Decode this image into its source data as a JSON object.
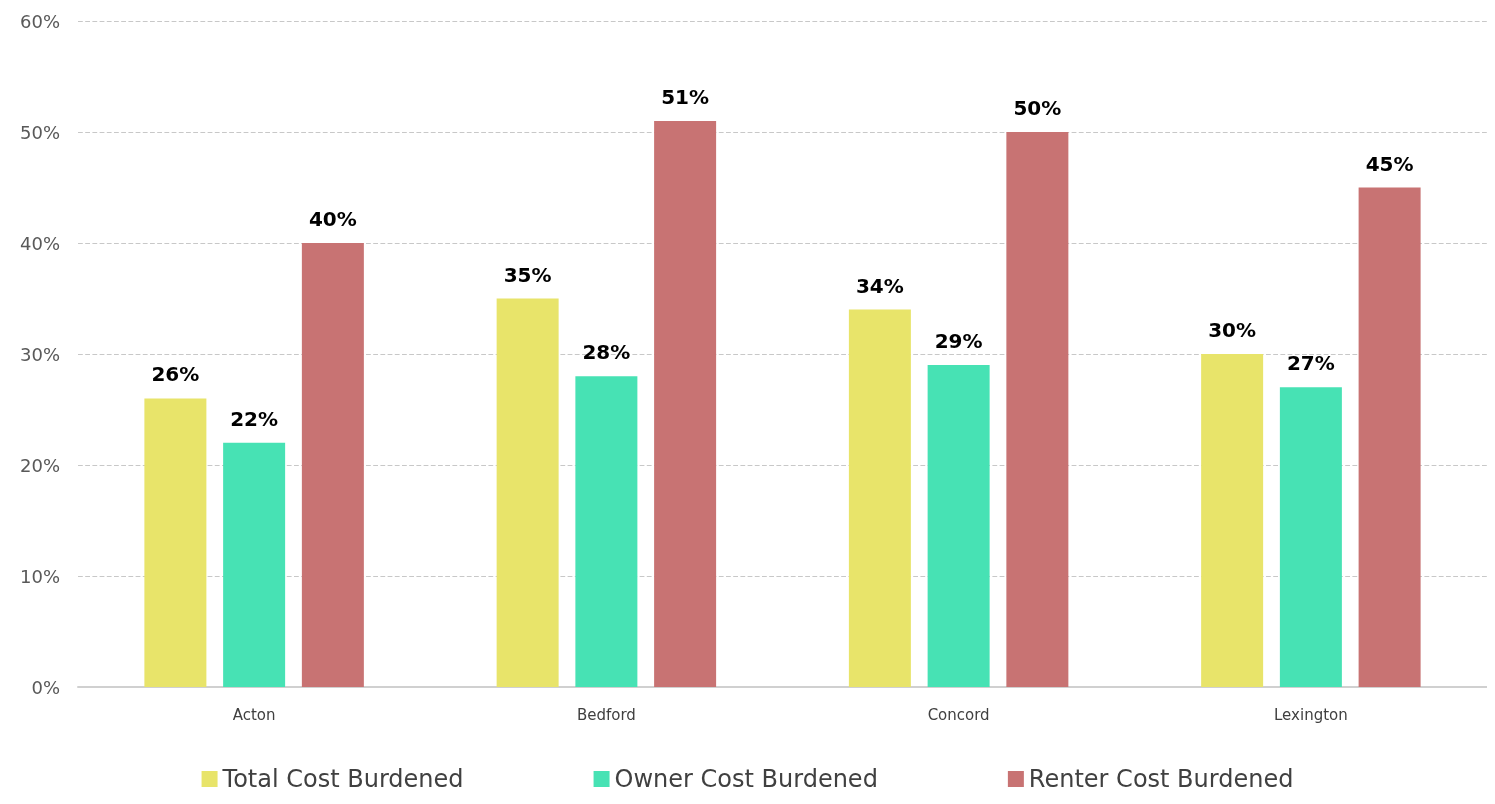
{
  "chart_data": {
    "type": "bar",
    "categories": [
      "Acton",
      "Bedford",
      "Concord",
      "Lexington"
    ],
    "series": [
      {
        "name": "Total Cost Burdened",
        "color": "#e8e46a",
        "values": [
          26,
          35,
          34,
          30
        ],
        "value_labels": [
          "26%",
          "35%",
          "34%",
          "30%"
        ]
      },
      {
        "name": "Owner Cost Burdened",
        "color": "#47e2b4",
        "values": [
          22,
          28,
          29,
          27
        ],
        "value_labels": [
          "22%",
          "28%",
          "29%",
          "27%"
        ]
      },
      {
        "name": "Renter Cost Burdened",
        "color": "#c87373",
        "values": [
          40,
          51,
          50,
          45
        ],
        "value_labels": [
          "40%",
          "51%",
          "50%",
          "45%"
        ]
      }
    ],
    "ylim": [
      0,
      60
    ],
    "yticks": [
      {
        "value": 0,
        "label": "0%"
      },
      {
        "value": 10,
        "label": "10%"
      },
      {
        "value": 20,
        "label": "20%"
      },
      {
        "value": 30,
        "label": "30%"
      },
      {
        "value": 40,
        "label": "40%"
      },
      {
        "value": 50,
        "label": "50%"
      },
      {
        "value": 60,
        "label": "60%"
      }
    ],
    "grid": "y",
    "legend": "bottom"
  }
}
